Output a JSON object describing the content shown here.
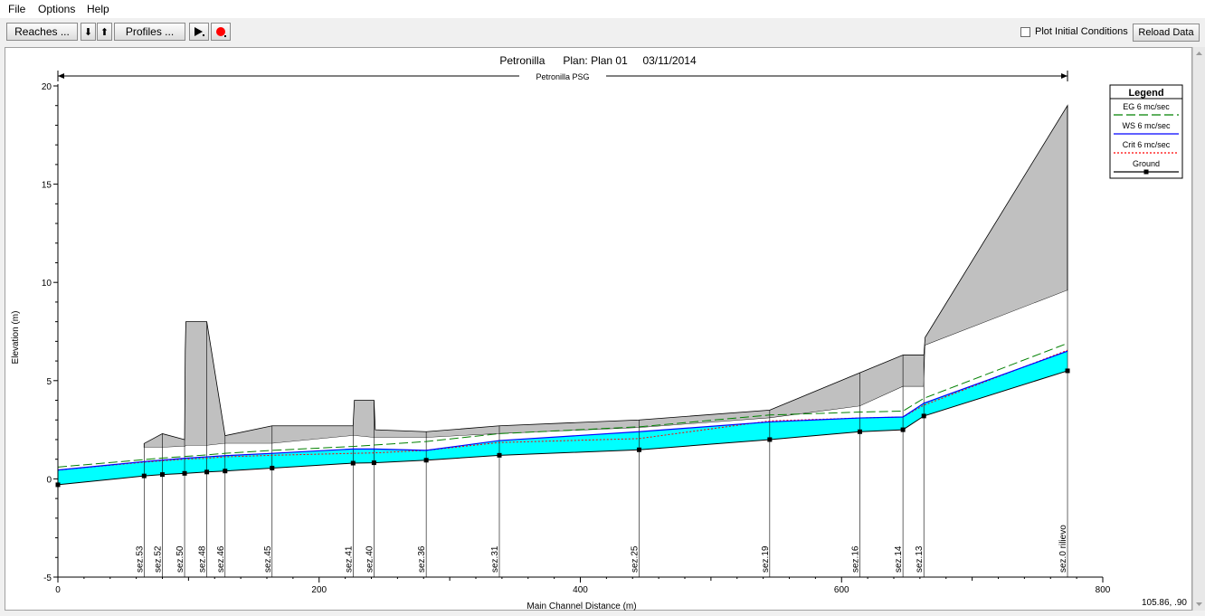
{
  "menu": {
    "file": "File",
    "options": "Options",
    "help": "Help"
  },
  "toolbar": {
    "reaches_label": "Reaches ...",
    "down_label": "⬇",
    "up_label": "⬆",
    "profiles_label": "Profiles ...",
    "plot_initial_label": "Plot Initial Conditions",
    "reload_label": "Reload Data"
  },
  "status": {
    "coords": "105.86, .90"
  },
  "colors": {
    "water": "#00ffff",
    "bank": "#c0c0c0",
    "eg": "#008000",
    "ws": "#0000ff",
    "crit": "#ff0000",
    "ground": "#000000",
    "record": "#ff0000"
  },
  "chart_data": {
    "type": "line",
    "title": "Petronilla      Plan: Plan 01     03/11/2014",
    "reach_label": "Petronilla PSG",
    "xlabel": "Main Channel Distance (m)",
    "ylabel": "Elevation (m)",
    "xlim": [
      0,
      800
    ],
    "ylim": [
      -5,
      20
    ],
    "xticks": [
      "0",
      "200",
      "400",
      "600",
      "800"
    ],
    "yticks": [
      "-5",
      "0",
      "5",
      "10",
      "15",
      "20"
    ],
    "legend_title": "Legend",
    "legend_position": "top-right",
    "series": [
      {
        "name": "EG  6 mc/sec",
        "x": [
          0,
          66,
          80,
          97,
          114,
          128,
          164,
          226,
          242,
          282,
          338,
          445,
          545,
          614,
          647,
          663,
          773
        ],
        "y": [
          0.6,
          0.98,
          1.06,
          1.14,
          1.22,
          1.3,
          1.45,
          1.65,
          1.72,
          1.9,
          2.3,
          2.65,
          3.25,
          3.4,
          3.45,
          4.1,
          6.9
        ]
      },
      {
        "name": "WS  6 mc/sec",
        "x": [
          0,
          66,
          80,
          97,
          114,
          128,
          164,
          226,
          242,
          282,
          338,
          445,
          545,
          614,
          647,
          663,
          773
        ],
        "y": [
          0.45,
          0.88,
          0.96,
          1.05,
          1.12,
          1.18,
          1.3,
          1.52,
          1.52,
          1.45,
          1.95,
          2.4,
          2.9,
          3.1,
          3.15,
          3.85,
          6.5
        ]
      },
      {
        "name": "Crit  6 mc/sec",
        "x": [
          0,
          66,
          80,
          97,
          114,
          128,
          164,
          226,
          242,
          282,
          338,
          445,
          545,
          614,
          647,
          663,
          773
        ],
        "y": [
          0.45,
          0.85,
          0.92,
          1.0,
          1.05,
          1.12,
          1.2,
          1.3,
          1.32,
          1.45,
          1.85,
          2.05,
          2.95,
          3.1,
          3.15,
          3.75,
          6.55
        ]
      },
      {
        "name": "Ground",
        "x": [
          0,
          66,
          80,
          97,
          114,
          128,
          164,
          226,
          242,
          282,
          338,
          445,
          545,
          614,
          647,
          663,
          773
        ],
        "y": [
          -0.3,
          0.15,
          0.22,
          0.28,
          0.35,
          0.4,
          0.55,
          0.8,
          0.82,
          0.95,
          1.2,
          1.48,
          2.0,
          2.4,
          2.5,
          3.2,
          5.5
        ]
      }
    ],
    "banks": {
      "x": [
        66,
        80,
        97,
        97.5,
        98,
        114,
        128,
        164,
        226,
        227,
        242,
        243,
        282,
        338,
        445,
        545,
        614,
        647,
        663,
        664,
        773
      ],
      "top": [
        1.8,
        2.3,
        2.0,
        6.5,
        8.0,
        8.0,
        2.2,
        2.7,
        2.7,
        4.0,
        4.0,
        2.5,
        2.4,
        2.7,
        3.0,
        3.5,
        5.4,
        6.3,
        6.3,
        7.2,
        19.0
      ],
      "bottom": [
        1.6,
        1.6,
        1.65,
        1.65,
        1.7,
        1.7,
        1.8,
        1.8,
        2.2,
        2.2,
        2.1,
        2.1,
        2.1,
        2.3,
        2.6,
        3.1,
        3.7,
        4.7,
        4.7,
        6.8,
        9.6
      ]
    },
    "stations": [
      {
        "label": "sez.53",
        "x": 66
      },
      {
        "label": "sez.52",
        "x": 80
      },
      {
        "label": "sez.50",
        "x": 97
      },
      {
        "label": "sez.48",
        "x": 114
      },
      {
        "label": "sez.46",
        "x": 128
      },
      {
        "label": "sez.45",
        "x": 164
      },
      {
        "label": "sez.41",
        "x": 226
      },
      {
        "label": "sez.40",
        "x": 242
      },
      {
        "label": "sez.36",
        "x": 282
      },
      {
        "label": "sez.31",
        "x": 338
      },
      {
        "label": "sez.25",
        "x": 445
      },
      {
        "label": "sez.19",
        "x": 545
      },
      {
        "label": "sez.16",
        "x": 614
      },
      {
        "label": "sez.14",
        "x": 647
      },
      {
        "label": "sez.13",
        "x": 663
      },
      {
        "label": "sez.0 rilievo",
        "x": 773
      }
    ]
  }
}
